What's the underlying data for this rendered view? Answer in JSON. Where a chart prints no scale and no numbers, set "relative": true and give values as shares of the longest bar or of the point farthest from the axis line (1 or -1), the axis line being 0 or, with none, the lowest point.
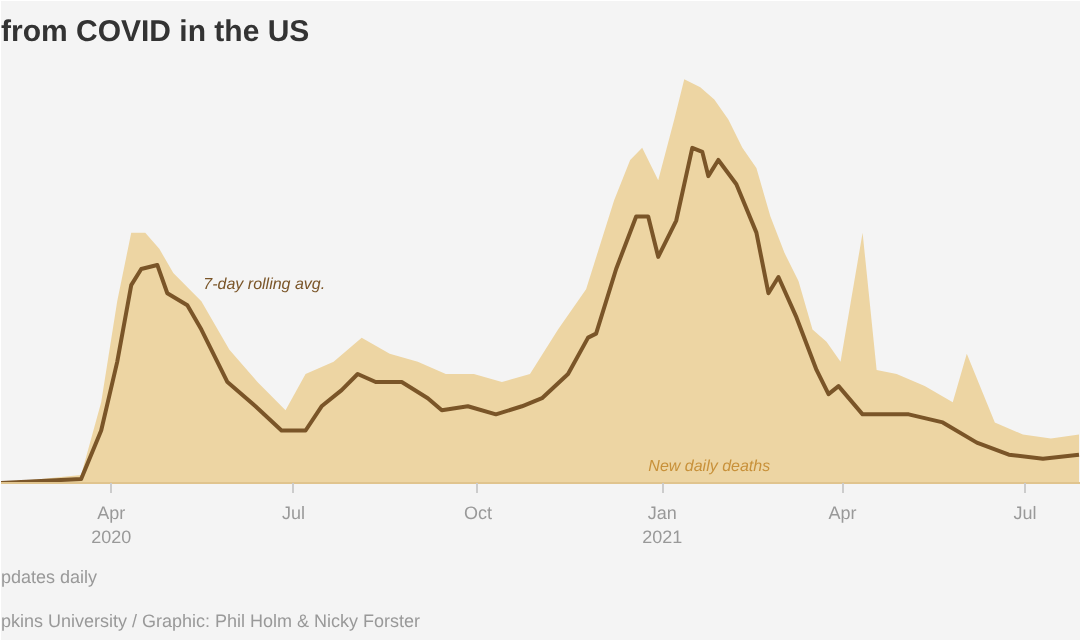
{
  "chart_data": {
    "type": "area",
    "title": "from COVID in the US",
    "relative": true,
    "xlim": [
      "2020-02-06",
      "2021-07-29"
    ],
    "xticks": [
      {
        "value": "2020-04-01",
        "label": "Apr\n2020"
      },
      {
        "value": "2020-07-01",
        "label": "Jul"
      },
      {
        "value": "2020-10-01",
        "label": "Oct"
      },
      {
        "value": "2021-01-01",
        "label": "Jan\n2021"
      },
      {
        "value": "2021-04-01",
        "label": "Apr"
      },
      {
        "value": "2021-07-01",
        "label": "Jul"
      }
    ],
    "series": [
      {
        "name": "New daily deaths",
        "color": "#edd5a3",
        "x": [
          "2020-02-06",
          "2020-03-17",
          "2020-03-27",
          "2020-04-04",
          "2020-04-11",
          "2020-04-18",
          "2020-04-25",
          "2020-05-02",
          "2020-05-16",
          "2020-05-30",
          "2020-06-13",
          "2020-06-27",
          "2020-07-07",
          "2020-07-21",
          "2020-08-04",
          "2020-08-18",
          "2020-09-01",
          "2020-09-15",
          "2020-09-29",
          "2020-10-13",
          "2020-10-27",
          "2020-11-10",
          "2020-11-24",
          "2020-12-08",
          "2020-12-16",
          "2020-12-22",
          "2020-12-30",
          "2021-01-07",
          "2021-01-12",
          "2021-01-20",
          "2021-01-27",
          "2021-02-03",
          "2021-02-10",
          "2021-02-17",
          "2021-02-24",
          "2021-03-03",
          "2021-03-10",
          "2021-03-17",
          "2021-03-24",
          "2021-03-31",
          "2021-04-11",
          "2021-04-18",
          "2021-04-28",
          "2021-05-12",
          "2021-05-26",
          "2021-06-02",
          "2021-06-16",
          "2021-06-30",
          "2021-07-14",
          "2021-07-28"
        ],
        "values": [
          0,
          0.02,
          0.2,
          0.45,
          0.62,
          0.62,
          0.58,
          0.52,
          0.45,
          0.33,
          0.25,
          0.18,
          0.27,
          0.3,
          0.36,
          0.32,
          0.3,
          0.27,
          0.27,
          0.25,
          0.27,
          0.38,
          0.48,
          0.7,
          0.8,
          0.83,
          0.75,
          0.9,
          1,
          0.98,
          0.95,
          0.9,
          0.83,
          0.78,
          0.66,
          0.57,
          0.5,
          0.38,
          0.35,
          0.3,
          0.62,
          0.28,
          0.27,
          0.24,
          0.2,
          0.32,
          0.15,
          0.12,
          0.11,
          0.12
        ]
      },
      {
        "name": "7-day rolling avg.",
        "type": "line",
        "color": "#7a5528",
        "x": [
          "2020-02-06",
          "2020-03-17",
          "2020-03-27",
          "2020-04-04",
          "2020-04-11",
          "2020-04-16",
          "2020-04-24",
          "2020-04-29",
          "2020-05-09",
          "2020-05-16",
          "2020-05-29",
          "2020-06-12",
          "2020-06-25",
          "2020-07-07",
          "2020-07-15",
          "2020-07-25",
          "2020-08-02",
          "2020-08-11",
          "2020-08-24",
          "2020-09-06",
          "2020-09-13",
          "2020-09-26",
          "2020-10-10",
          "2020-10-23",
          "2020-11-02",
          "2020-11-15",
          "2020-11-25",
          "2020-11-29",
          "2020-12-09",
          "2020-12-19",
          "2020-12-25",
          "2020-12-30",
          "2021-01-08",
          "2021-01-16",
          "2021-01-21",
          "2021-01-24",
          "2021-01-29",
          "2021-02-07",
          "2021-02-17",
          "2021-02-23",
          "2021-02-28",
          "2021-03-09",
          "2021-03-19",
          "2021-03-25",
          "2021-03-30",
          "2021-04-11",
          "2021-05-04",
          "2021-05-21",
          "2021-06-07",
          "2021-06-23",
          "2021-07-10",
          "2021-07-28"
        ],
        "values": [
          0,
          0.01,
          0.13,
          0.3,
          0.49,
          0.53,
          0.54,
          0.47,
          0.44,
          0.38,
          0.25,
          0.19,
          0.13,
          0.13,
          0.19,
          0.23,
          0.27,
          0.25,
          0.25,
          0.21,
          0.18,
          0.19,
          0.17,
          0.19,
          0.21,
          0.27,
          0.36,
          0.37,
          0.53,
          0.66,
          0.66,
          0.56,
          0.65,
          0.83,
          0.82,
          0.76,
          0.8,
          0.74,
          0.62,
          0.47,
          0.51,
          0.41,
          0.28,
          0.22,
          0.24,
          0.17,
          0.17,
          0.15,
          0.1,
          0.07,
          0.06,
          0.07
        ]
      }
    ],
    "annotations": [
      "pdates daily",
      "pkins University / Graphic: Phil Holm & Nicky Forster"
    ],
    "grid": false
  }
}
